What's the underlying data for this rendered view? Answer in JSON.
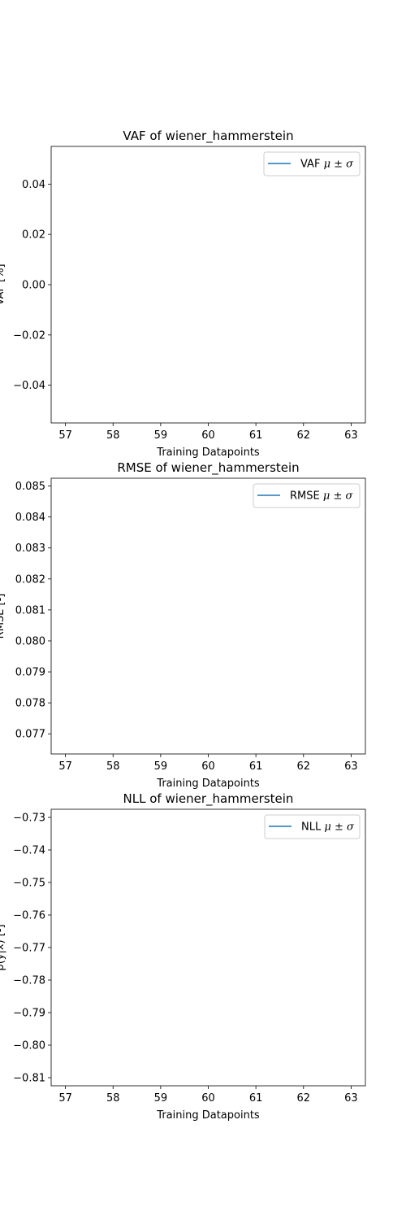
{
  "chart_data": [
    {
      "type": "line",
      "title": "VAF of wiener_hammerstein",
      "xlabel": "Training Datapoints",
      "ylabel": "VAF [%]",
      "xlim": [
        56.7,
        63.3
      ],
      "ylim": [
        -0.055,
        0.055
      ],
      "xticks": [
        57,
        58,
        59,
        60,
        61,
        62,
        63
      ],
      "xtick_labels": [
        "57",
        "58",
        "59",
        "60",
        "61",
        "62",
        "63"
      ],
      "yticks": [
        0.04,
        0.02,
        0.0,
        -0.02,
        -0.04
      ],
      "ytick_labels": [
        "0.04",
        "0.02",
        "0.00",
        "−0.02",
        "−0.04"
      ],
      "legend": "top-right",
      "series": [
        {
          "name": "VAF μ ± σ",
          "name_main": "VAF",
          "name_math": "μ ± σ",
          "color": "#1f77b4",
          "x": [],
          "y": []
        }
      ]
    },
    {
      "type": "line",
      "title": "RMSE of wiener_hammerstein",
      "xlabel": "Training Datapoints",
      "ylabel": "RMSE [-]",
      "xlim": [
        56.7,
        63.3
      ],
      "ylim": [
        0.07635,
        0.08525
      ],
      "xticks": [
        57,
        58,
        59,
        60,
        61,
        62,
        63
      ],
      "xtick_labels": [
        "57",
        "58",
        "59",
        "60",
        "61",
        "62",
        "63"
      ],
      "yticks": [
        0.085,
        0.084,
        0.083,
        0.082,
        0.081,
        0.08,
        0.079,
        0.078,
        0.077
      ],
      "ytick_labels": [
        "0.085",
        "0.084",
        "0.083",
        "0.082",
        "0.081",
        "0.080",
        "0.079",
        "0.078",
        "0.077"
      ],
      "legend": "top-right",
      "series": [
        {
          "name": "RMSE μ ± σ",
          "name_main": "RMSE",
          "name_math": "μ ± σ",
          "color": "#1f77b4",
          "x": [],
          "y": []
        }
      ]
    },
    {
      "type": "line",
      "title": "NLL of wiener_hammerstein",
      "xlabel": "Training Datapoints",
      "ylabel": "p(y|x) [-]",
      "xlim": [
        56.7,
        63.3
      ],
      "ylim": [
        -0.8125,
        -0.7275
      ],
      "xticks": [
        57,
        58,
        59,
        60,
        61,
        62,
        63
      ],
      "xtick_labels": [
        "57",
        "58",
        "59",
        "60",
        "61",
        "62",
        "63"
      ],
      "yticks": [
        -0.73,
        -0.74,
        -0.75,
        -0.76,
        -0.77,
        -0.78,
        -0.79,
        -0.8,
        -0.81
      ],
      "ytick_labels": [
        "−0.73",
        "−0.74",
        "−0.75",
        "−0.76",
        "−0.77",
        "−0.78",
        "−0.79",
        "−0.80",
        "−0.81"
      ],
      "legend": "top-right",
      "series": [
        {
          "name": "NLL μ ± σ",
          "name_main": "NLL",
          "name_math": "μ ± σ",
          "color": "#1f77b4",
          "x": [],
          "y": []
        }
      ]
    }
  ]
}
